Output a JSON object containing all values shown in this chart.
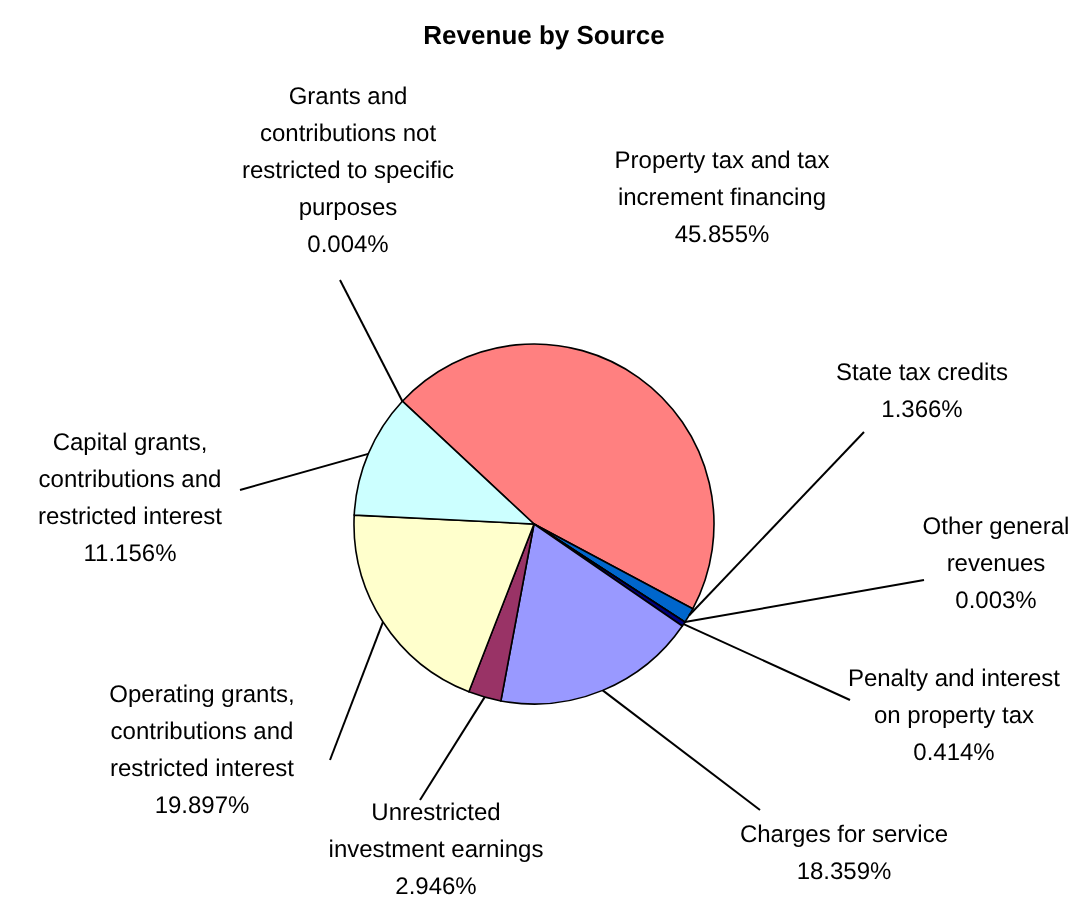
{
  "chart_data": {
    "type": "pie",
    "title": "Revenue by Source",
    "categories": [
      "Grants and contributions not restricted to specific purposes",
      "Property tax and tax increment financing",
      "State tax credits",
      "Other general revenues",
      "Penalty and interest on property tax",
      "Charges for service",
      "Unrestricted investment earnings",
      "Operating grants, contributions and restricted interest",
      "Capital grants, contributions and restricted interest"
    ],
    "values": [
      0.004,
      45.855,
      1.366,
      0.003,
      0.414,
      18.359,
      2.946,
      19.897,
      11.156
    ],
    "value_labels": [
      "0.004%",
      "45.855%",
      "1.366%",
      "0.003%",
      "0.414%",
      "18.359%",
      "2.946%",
      "19.897%",
      "11.156%"
    ],
    "colors": [
      "#660066",
      "#ff8080",
      "#0066cc",
      "#ccccff",
      "#000080",
      "#9999ff",
      "#993366",
      "#ffffcc",
      "#ccffff"
    ]
  }
}
